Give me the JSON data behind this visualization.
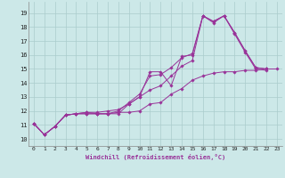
{
  "xlabel": "Windchill (Refroidissement éolien,°C)",
  "background_color": "#cce8e8",
  "grid_color": "#aacccc",
  "line_color": "#993399",
  "xlim": [
    -0.5,
    23.5
  ],
  "ylim": [
    9.5,
    19.8
  ],
  "xticks": [
    0,
    1,
    2,
    3,
    4,
    5,
    6,
    7,
    8,
    9,
    10,
    11,
    12,
    13,
    14,
    15,
    16,
    17,
    18,
    19,
    20,
    21,
    22,
    23
  ],
  "yticks": [
    10,
    11,
    12,
    13,
    14,
    15,
    16,
    17,
    18,
    19
  ],
  "series": [
    {
      "x": [
        0,
        1,
        2,
        3,
        4,
        5,
        6,
        7,
        8,
        9,
        10,
        11,
        12,
        13,
        14,
        15,
        16,
        17,
        18,
        19,
        20,
        21,
        22
      ],
      "y": [
        11.1,
        10.3,
        10.9,
        11.7,
        11.8,
        11.8,
        11.8,
        11.8,
        11.8,
        12.5,
        13.0,
        14.8,
        14.8,
        13.8,
        15.9,
        16.0,
        18.8,
        18.3,
        18.8,
        17.5,
        16.2,
        15.0,
        14.9
      ]
    },
    {
      "x": [
        0,
        1,
        2,
        3,
        4,
        5,
        6,
        7,
        8,
        9,
        10,
        11,
        12,
        13,
        14,
        15,
        16,
        17,
        18,
        19,
        20,
        21,
        22
      ],
      "y": [
        11.1,
        10.3,
        10.9,
        11.7,
        11.8,
        11.8,
        11.8,
        11.8,
        12.0,
        12.6,
        13.2,
        14.5,
        14.6,
        15.1,
        15.8,
        16.1,
        18.8,
        18.4,
        18.8,
        17.6,
        16.3,
        15.1,
        15.0
      ]
    },
    {
      "x": [
        0,
        1,
        2,
        3,
        4,
        5,
        6,
        7,
        8,
        9,
        10,
        11,
        12,
        13,
        14,
        15,
        16,
        17,
        18,
        19,
        20,
        21,
        22
      ],
      "y": [
        11.1,
        10.3,
        10.9,
        11.7,
        11.8,
        11.9,
        11.9,
        12.0,
        12.1,
        12.5,
        13.0,
        13.5,
        13.8,
        14.5,
        15.2,
        15.6,
        18.8,
        18.4,
        18.8,
        17.6,
        16.3,
        15.1,
        15.0
      ]
    },
    {
      "x": [
        0,
        1,
        2,
        3,
        4,
        5,
        6,
        7,
        8,
        9,
        10,
        11,
        12,
        13,
        14,
        15,
        16,
        17,
        18,
        19,
        20,
        21,
        22,
        23
      ],
      "y": [
        11.1,
        10.3,
        10.9,
        11.7,
        11.8,
        11.9,
        11.8,
        11.8,
        11.9,
        11.9,
        12.0,
        12.5,
        12.6,
        13.2,
        13.6,
        14.2,
        14.5,
        14.7,
        14.8,
        14.8,
        14.9,
        14.9,
        15.0,
        15.0
      ]
    }
  ]
}
